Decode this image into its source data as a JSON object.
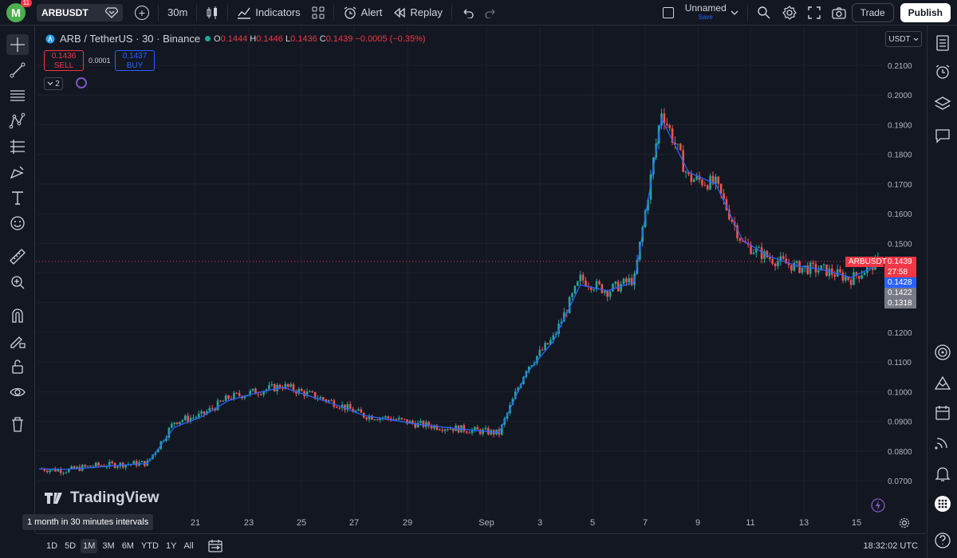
{
  "topbar": {
    "avatar_letter": "M",
    "notification_count": "11",
    "symbol": "ARBUSDT",
    "interval": "30m",
    "indicators_label": "Indicators",
    "alert_label": "Alert",
    "replay_label": "Replay",
    "layout_name": "Unnamed",
    "layout_status": "Save",
    "trade_label": "Trade",
    "publish_label": "Publish"
  },
  "legend": {
    "base": "ARB",
    "quote": "TetherUS",
    "interval": "30",
    "exchange": "Binance",
    "title": "ARB / TetherUS · 30 · Binance",
    "open": "0.1444",
    "high": "0.1446",
    "low": "0.1436",
    "close": "0.1439",
    "change": "−0.0005 (−0.35%)",
    "sell_price": "0.1436",
    "sell_label": "SELL",
    "spread": "0.0001",
    "buy_price": "0.1437",
    "buy_label": "BUY",
    "collapsed_count": "2"
  },
  "chart": {
    "currency": "USDT",
    "watermark": "TradingView",
    "tooltip": "1 month in 30 minutes intervals",
    "colors": {
      "up": "#26a69a",
      "down": "#ef5350",
      "ma": "#2962ff",
      "bg": "#131722",
      "grid": "#1e222d",
      "last_price": "#f23645"
    }
  },
  "chart_data": {
    "type": "line",
    "title": "ARB / TetherUS · 30 · Binance",
    "xlabel": "",
    "ylabel": "",
    "x_ticks": [
      "21",
      "23",
      "25",
      "27",
      "29",
      "Sep",
      "3",
      "5",
      "7",
      "9",
      "11",
      "13",
      "15"
    ],
    "y_ticks": [
      "0.2100",
      "0.2000",
      "0.1900",
      "0.1800",
      "0.1700",
      "0.1600",
      "0.1500",
      "0.1400",
      "0.1300",
      "0.1200",
      "0.1100",
      "0.1000",
      "0.0900",
      "0.0800",
      "0.0700"
    ],
    "ylim": [
      0.065,
      0.217
    ],
    "grid": true,
    "series": [
      {
        "style": "candles",
        "x": [
          "Aug 15",
          "Aug 16",
          "Aug 17",
          "Aug 18",
          "Aug 19",
          "Aug 20",
          "Aug 21",
          "Aug 22",
          "Aug 23",
          "Aug 24",
          "Aug 25",
          "Aug 26",
          "Aug 27",
          "Aug 28",
          "Aug 29",
          "Aug 30",
          "Aug 31",
          "Sep 1",
          "Sep 2",
          "Sep 3",
          "Sep 4",
          "Sep 5",
          "Sep 6",
          "Sep 7",
          "Sep 8",
          "Sep 9",
          "Sep 10",
          "Sep 11",
          "Sep 12",
          "Sep 13",
          "Sep 14",
          "Sep 15"
        ],
        "close": [
          0.074,
          0.0735,
          0.075,
          0.0755,
          0.076,
          0.09,
          0.092,
          0.098,
          0.1,
          0.102,
          0.099,
          0.096,
          0.092,
          0.091,
          0.089,
          0.088,
          0.087,
          0.086,
          0.108,
          0.118,
          0.138,
          0.134,
          0.138,
          0.195,
          0.172,
          0.17,
          0.15,
          0.145,
          0.142,
          0.141,
          0.138,
          0.1439
        ]
      },
      {
        "style": "moving-average",
        "x": [
          "Aug 15",
          "Aug 16",
          "Aug 17",
          "Aug 18",
          "Aug 19",
          "Aug 20",
          "Aug 21",
          "Aug 22",
          "Aug 23",
          "Aug 24",
          "Aug 25",
          "Aug 26",
          "Aug 27",
          "Aug 28",
          "Aug 29",
          "Aug 30",
          "Aug 31",
          "Sep 1",
          "Sep 2",
          "Sep 3",
          "Sep 4",
          "Sep 5",
          "Sep 6",
          "Sep 7",
          "Sep 8",
          "Sep 9",
          "Sep 10",
          "Sep 11",
          "Sep 12",
          "Sep 13",
          "Sep 14",
          "Sep 15"
        ],
        "values": [
          0.074,
          0.0738,
          0.0745,
          0.0752,
          0.0758,
          0.088,
          0.0915,
          0.097,
          0.0995,
          0.1015,
          0.0985,
          0.0955,
          0.092,
          0.0905,
          0.089,
          0.088,
          0.087,
          0.0862,
          0.106,
          0.117,
          0.136,
          0.134,
          0.137,
          0.192,
          0.174,
          0.17,
          0.151,
          0.1455,
          0.1425,
          0.141,
          0.1385,
          0.1428
        ]
      }
    ],
    "price_tags": [
      {
        "label": "ARBUSDT",
        "value": "0.1439",
        "color": "#f23645"
      },
      {
        "label": "",
        "value": "27:58",
        "color": "#f23645"
      },
      {
        "label": "",
        "value": "0.1428",
        "color": "#2962ff"
      },
      {
        "label": "",
        "value": "0.1422",
        "color": "#787b86"
      },
      {
        "label": "",
        "value": "0.1318",
        "color": "#787b86"
      }
    ]
  },
  "bottombar": {
    "ranges": [
      "1D",
      "5D",
      "1M",
      "3M",
      "6M",
      "YTD",
      "1Y",
      "All"
    ],
    "active_range": "1M",
    "utc_time": "18:32:02 UTC"
  }
}
